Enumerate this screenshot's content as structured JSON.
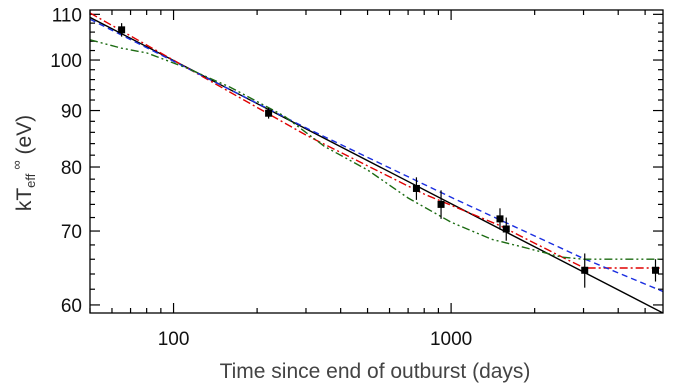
{
  "chart_data": {
    "type": "scatter",
    "xscale": "log",
    "yscale": "log",
    "xlabel": "Time since end of outburst (days)",
    "ylabel": {
      "main": "kT",
      "sub": "eff",
      "sup": "∞",
      "unit": " (eV)"
    },
    "xlim": [
      50,
      5800
    ],
    "ylim": [
      59,
      111
    ],
    "x_ticks": [
      100,
      1000
    ],
    "y_ticks": [
      60,
      70,
      80,
      90,
      100,
      110
    ],
    "points": [
      {
        "x": 65,
        "y": 106.5,
        "yerr": 1.5
      },
      {
        "x": 220,
        "y": 89.5,
        "yerr": 1.0
      },
      {
        "x": 750,
        "y": 76.5,
        "yerr": 1.8
      },
      {
        "x": 920,
        "y": 74,
        "yerr": 2.2
      },
      {
        "x": 1500,
        "y": 71.8,
        "yerr": 1.6
      },
      {
        "x": 1580,
        "y": 70.3,
        "yerr": 1.7
      },
      {
        "x": 3030,
        "y": 64.5,
        "yerr": 2.3
      },
      {
        "x": 5450,
        "y": 64.5,
        "yerr": 1.5
      }
    ],
    "series": [
      {
        "color": "#000000",
        "dash": "",
        "x": [
          50,
          5800
        ],
        "y": [
          109.3,
          59.0
        ]
      },
      {
        "color": "#e00000",
        "dash": "8,3,2,3",
        "x": [
          50,
          300,
          800,
          1500,
          2600,
          3030,
          5800
        ],
        "y": [
          110.3,
          85.5,
          75.6,
          70.8,
          66.0,
          64.8,
          64.8
        ]
      },
      {
        "color": "#1a2ee0",
        "dash": "6,4",
        "x": [
          50,
          300,
          1000,
          3000,
          5800
        ],
        "y": [
          108.9,
          86.8,
          75.1,
          66.1,
          61.7
        ]
      },
      {
        "color": "#1c6b12",
        "dash": "8,3,2,3,2,3",
        "x": [
          50,
          65,
          80,
          110,
          160,
          250,
          350,
          500,
          700,
          1000,
          1400,
          1900,
          2500,
          3000,
          5800
        ],
        "y": [
          104.3,
          102.5,
          101.5,
          98.5,
          94.5,
          89.0,
          83.5,
          79.5,
          75.0,
          71.3,
          68.8,
          67.5,
          66.3,
          66.0,
          66.0
        ]
      }
    ]
  }
}
